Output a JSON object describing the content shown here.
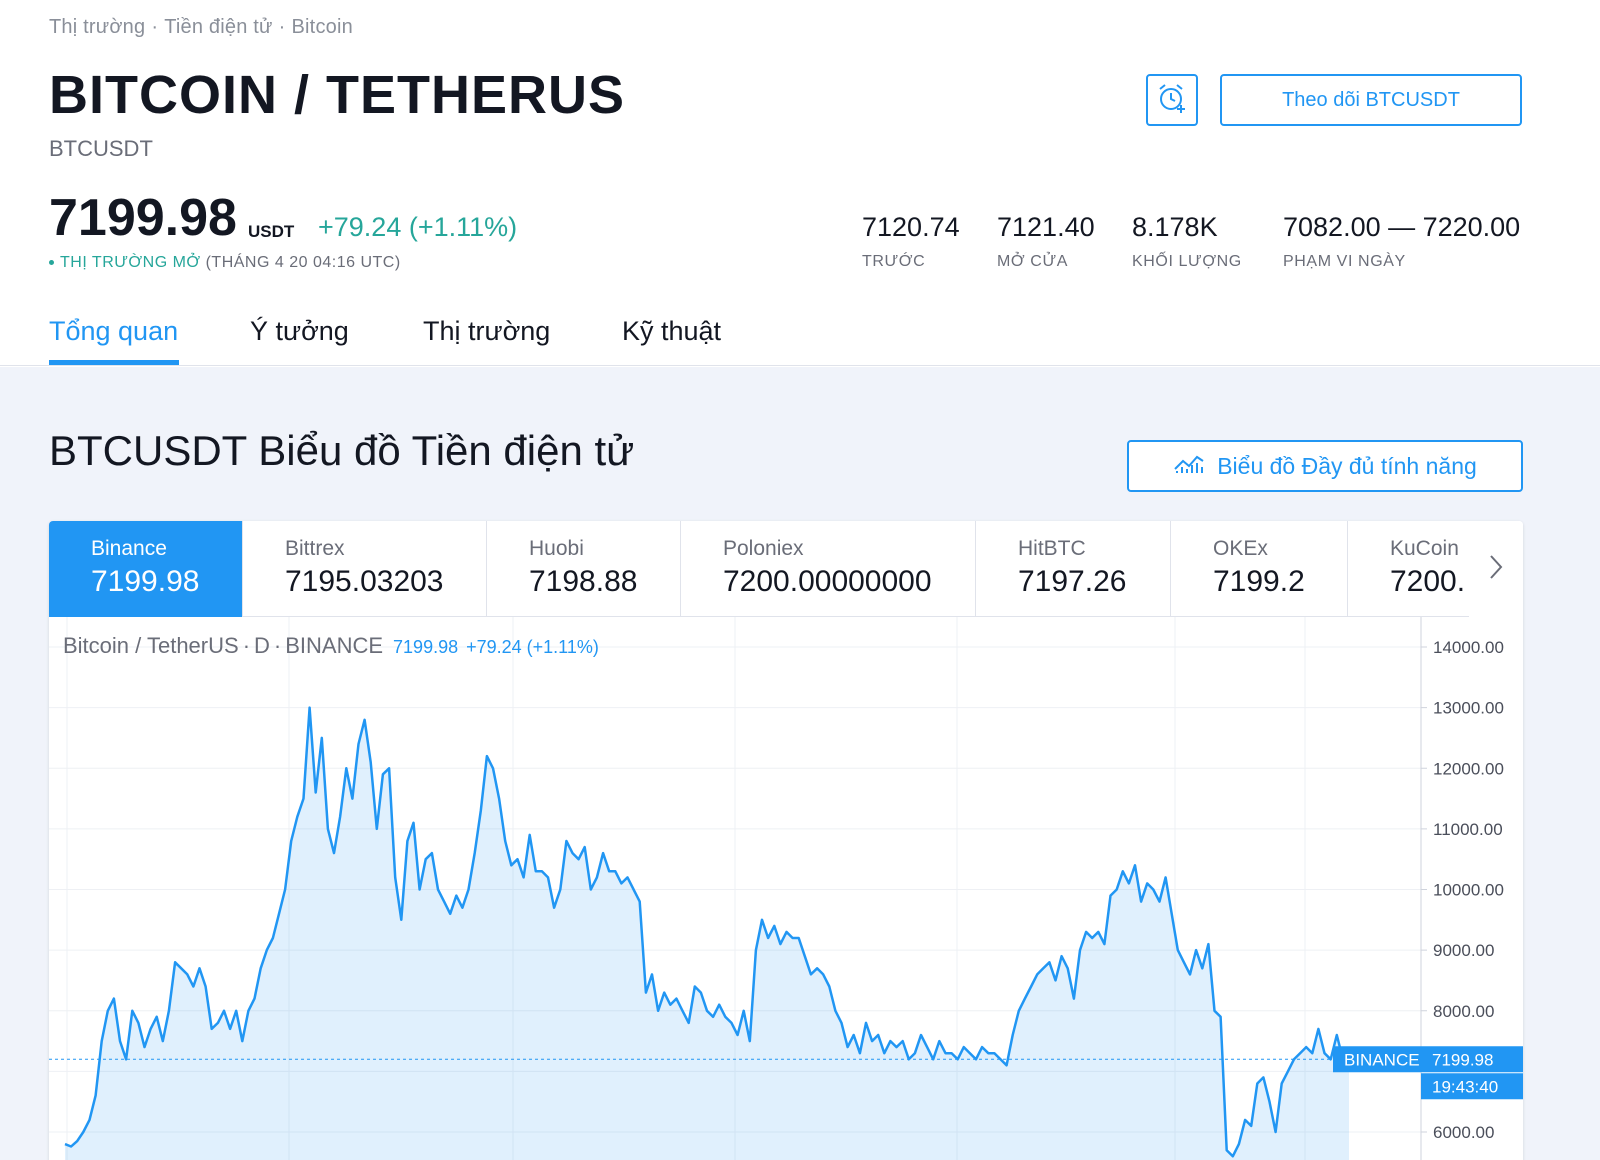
{
  "breadcrumb": [
    "Thị trường",
    "Tiền điện tử",
    "Bitcoin"
  ],
  "header": {
    "title": "BITCOIN / TETHERUS",
    "symbol": "BTCUSDT",
    "follow_label": "Theo dõi BTCUSDT",
    "alert_icon": "alarm-clock-plus-icon"
  },
  "quote": {
    "price": "7199.98",
    "currency": "USDT",
    "change": "+79.24 (+1.11%)",
    "status_label": "THỊ TRƯỜNG MỞ",
    "status_time": "(THÁNG 4 20 04:16 UTC)"
  },
  "stats": [
    {
      "value": "7120.74",
      "label": "TRƯỚC"
    },
    {
      "value": "7121.40",
      "label": "MỞ CỬA"
    },
    {
      "value": "8.178K",
      "label": "KHỐI LƯỢNG"
    },
    {
      "value": "7082.00 — 7220.00",
      "label": "PHẠM VI NGÀY"
    }
  ],
  "tabs": [
    "Tổng quan",
    "Ý tưởng",
    "Thị trường",
    "Kỹ thuật"
  ],
  "section": {
    "title": "BTCUSDT Biểu đồ Tiền điện tử",
    "full_chart_label": "Biểu đồ Đầy đủ tính năng"
  },
  "exchanges": [
    {
      "name": "Binance",
      "price": "7199.98"
    },
    {
      "name": "Bittrex",
      "price": "7195.03203"
    },
    {
      "name": "Huobi",
      "price": "7198.88"
    },
    {
      "name": "Poloniex",
      "price": "7200.00000000"
    },
    {
      "name": "HitBTC",
      "price": "7197.26"
    },
    {
      "name": "OKEx",
      "price": "7199.2"
    },
    {
      "name": "KuCoin",
      "price": "7200."
    }
  ],
  "chart_legend": {
    "symbol": "Bitcoin / TetherUS",
    "interval": "D",
    "exchange": "BINANCE",
    "price": "7199.98",
    "change": "+79.24 (+1.11%)"
  },
  "colors": {
    "accent": "#2196f3",
    "positive": "#26a69a"
  },
  "chart_data": {
    "type": "area",
    "ylim": [
      5600,
      14000
    ],
    "yticks": [
      "14000.00",
      "13000.00",
      "12000.00",
      "11000.00",
      "10000.00",
      "9000.00",
      "8000.00",
      "6000.00"
    ],
    "last_price": "7199.98",
    "last_label": "BINANCE",
    "countdown": "19:43:40",
    "series": [
      {
        "values": [
          5800,
          5760,
          5850,
          6000,
          6200,
          6600,
          7500,
          8000,
          8200,
          7500,
          7200,
          8000,
          7800,
          7400,
          7700,
          7900,
          7500,
          8000,
          8800,
          8700,
          8600,
          8400,
          8700,
          8400,
          7700,
          7800,
          8000,
          7700,
          8000,
          7500,
          8000,
          8200,
          8700,
          9000,
          9200,
          9600,
          10000,
          10800,
          11200,
          11500,
          13000,
          11600,
          12500,
          11000,
          10600,
          11200,
          12000,
          11500,
          12400,
          12800,
          12100,
          11000,
          11900,
          12000,
          10200,
          9500,
          10800,
          11100,
          10000,
          10500,
          10600,
          10000,
          9800,
          9600,
          9900,
          9700,
          10000,
          10600,
          11300,
          12200,
          12000,
          11500,
          10800,
          10400,
          10500,
          10200,
          10900,
          10300,
          10300,
          10200,
          9700,
          10000,
          10800,
          10600,
          10500,
          10700,
          10000,
          10200,
          10600,
          10300,
          10300,
          10100,
          10200,
          10000,
          9800,
          8300,
          8600,
          8000,
          8300,
          8100,
          8200,
          8000,
          7800,
          8400,
          8300,
          8000,
          7900,
          8100,
          7900,
          7800,
          7600,
          8000,
          7500,
          9000,
          9500,
          9200,
          9400,
          9100,
          9300,
          9200,
          9200,
          8900,
          8600,
          8700,
          8600,
          8400,
          8000,
          7800,
          7400,
          7600,
          7300,
          7800,
          7500,
          7600,
          7300,
          7500,
          7400,
          7500,
          7200,
          7300,
          7600,
          7400,
          7200,
          7500,
          7300,
          7300,
          7200,
          7400,
          7300,
          7200,
          7400,
          7300,
          7300,
          7200,
          7100,
          7600,
          8000,
          8200,
          8400,
          8600,
          8700,
          8800,
          8500,
          8900,
          8700,
          8200,
          9000,
          9300,
          9200,
          9300,
          9100,
          9900,
          10000,
          10300,
          10100,
          10400,
          9800,
          10100,
          10000,
          9800,
          10200,
          9600,
          9000,
          8800,
          8600,
          9000,
          8700,
          9100,
          8000,
          7900,
          5700,
          5600,
          5800,
          6200,
          6100,
          6800,
          6900,
          6500,
          6000,
          6800,
          7000,
          7200,
          7300,
          7400,
          7300,
          7700,
          7300,
          7200,
          7600,
          7200,
          7199.98
        ]
      }
    ]
  }
}
